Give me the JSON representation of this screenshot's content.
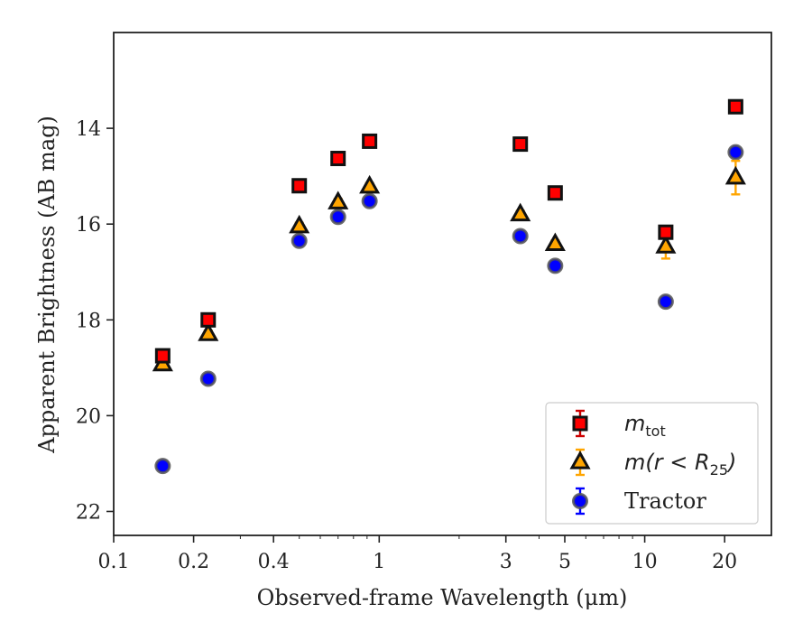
{
  "chart_data": {
    "type": "scatter",
    "xlabel": "Observed-frame Wavelength (μm)",
    "ylabel": "Apparent Brightness (AB mag)",
    "xscale": "log",
    "xlim": [
      0.1,
      30
    ],
    "ylim": [
      22.5,
      12.0
    ],
    "y_inverted": true,
    "x_ticks": [
      0.1,
      0.2,
      0.4,
      1,
      3,
      5,
      10,
      20
    ],
    "x_tick_labels": [
      "0.1",
      "0.2",
      "0.4",
      "1",
      "3",
      "5",
      "10",
      "20"
    ],
    "y_ticks": [
      14,
      16,
      18,
      20,
      22
    ],
    "y_tick_labels": [
      "14",
      "16",
      "18",
      "20",
      "22"
    ],
    "grid": false,
    "legend_position": "bottom-right",
    "series": [
      {
        "name": "m_tot",
        "legend_main": "m",
        "legend_sub": "tot",
        "marker": "square",
        "color": "#ff0000",
        "edge_color": "#111111",
        "errorbar_color": "#cc0000",
        "points": [
          {
            "x": 0.153,
            "y": 18.75
          },
          {
            "x": 0.227,
            "y": 18.0
          },
          {
            "x": 0.5,
            "y": 15.2
          },
          {
            "x": 0.7,
            "y": 14.63
          },
          {
            "x": 0.92,
            "y": 14.27
          },
          {
            "x": 3.4,
            "y": 14.33
          },
          {
            "x": 4.6,
            "y": 15.35
          },
          {
            "x": 12.0,
            "y": 16.17
          },
          {
            "x": 22.0,
            "y": 13.55
          }
        ]
      },
      {
        "name": "m(r < R_25)",
        "legend_main": "m(r < R",
        "legend_sub": "25",
        "legend_tail": ")",
        "marker": "triangle",
        "color": "#ffa500",
        "edge_color": "#111111",
        "errorbar_color": "#ffa500",
        "points": [
          {
            "x": 0.153,
            "y": 18.93,
            "err": 0.03
          },
          {
            "x": 0.227,
            "y": 18.3,
            "err": 0.03
          },
          {
            "x": 0.5,
            "y": 16.05,
            "err": 0.03
          },
          {
            "x": 0.7,
            "y": 15.55,
            "err": 0.03
          },
          {
            "x": 0.92,
            "y": 15.22,
            "err": 0.03
          },
          {
            "x": 3.4,
            "y": 15.8,
            "err": 0.03
          },
          {
            "x": 4.6,
            "y": 16.42,
            "err": 0.03
          },
          {
            "x": 12.0,
            "y": 16.47,
            "err": 0.25
          },
          {
            "x": 22.0,
            "y": 15.03,
            "err": 0.35
          }
        ]
      },
      {
        "name": "Tractor",
        "legend_main": "Tractor",
        "marker": "circle",
        "color": "#0000ff",
        "edge_color": "#555555",
        "errorbar_color": "#0000ff",
        "points": [
          {
            "x": 0.153,
            "y": 21.05
          },
          {
            "x": 0.227,
            "y": 19.23
          },
          {
            "x": 0.5,
            "y": 16.35
          },
          {
            "x": 0.7,
            "y": 15.85
          },
          {
            "x": 0.92,
            "y": 15.52
          },
          {
            "x": 3.4,
            "y": 16.25
          },
          {
            "x": 4.6,
            "y": 16.87
          },
          {
            "x": 12.0,
            "y": 17.62
          },
          {
            "x": 22.0,
            "y": 14.5
          }
        ]
      }
    ]
  }
}
